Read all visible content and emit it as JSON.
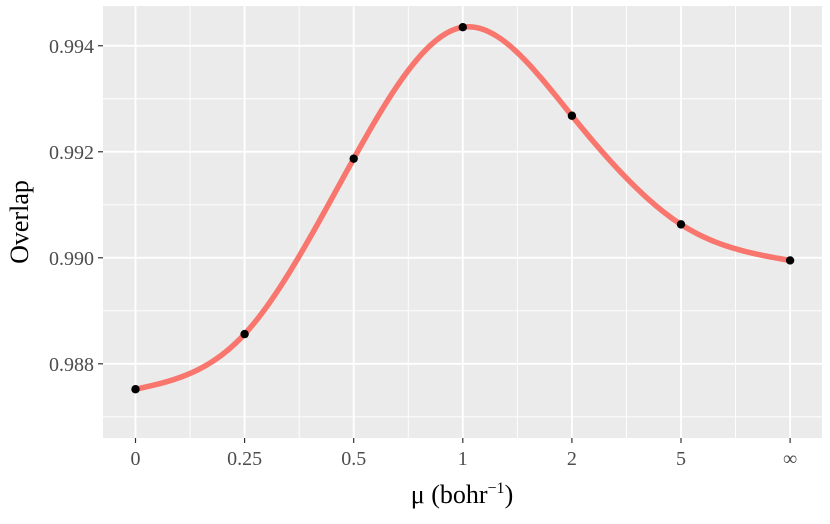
{
  "chart_data": {
    "type": "line",
    "title": "",
    "xlabel": {
      "main": "μ (bohr",
      "sup": "−1",
      "close": ")"
    },
    "ylabel": "Overlap",
    "x_categories": [
      "0",
      "0.25",
      "0.5",
      "1",
      "2",
      "5",
      "∞"
    ],
    "y_ticks": [
      "0.988",
      "0.990",
      "0.992",
      "0.994"
    ],
    "y_tick_values": [
      0.988,
      0.99,
      0.992,
      0.994
    ],
    "ylim": [
      0.9866,
      0.99475
    ],
    "grid": true,
    "points": [
      {
        "x": "0",
        "y": 0.98752
      },
      {
        "x": "0.25",
        "y": 0.98856
      },
      {
        "x": "0.5",
        "y": 0.99187
      },
      {
        "x": "1",
        "y": 0.99435
      },
      {
        "x": "2",
        "y": 0.99268
      },
      {
        "x": "5",
        "y": 0.99063
      },
      {
        "x": "∞",
        "y": 0.98995
      }
    ],
    "curve_color": "#F8766D",
    "point_color": "#000000",
    "panel_color": "#EBEBEB",
    "grid_color": "#FFFFFF"
  }
}
